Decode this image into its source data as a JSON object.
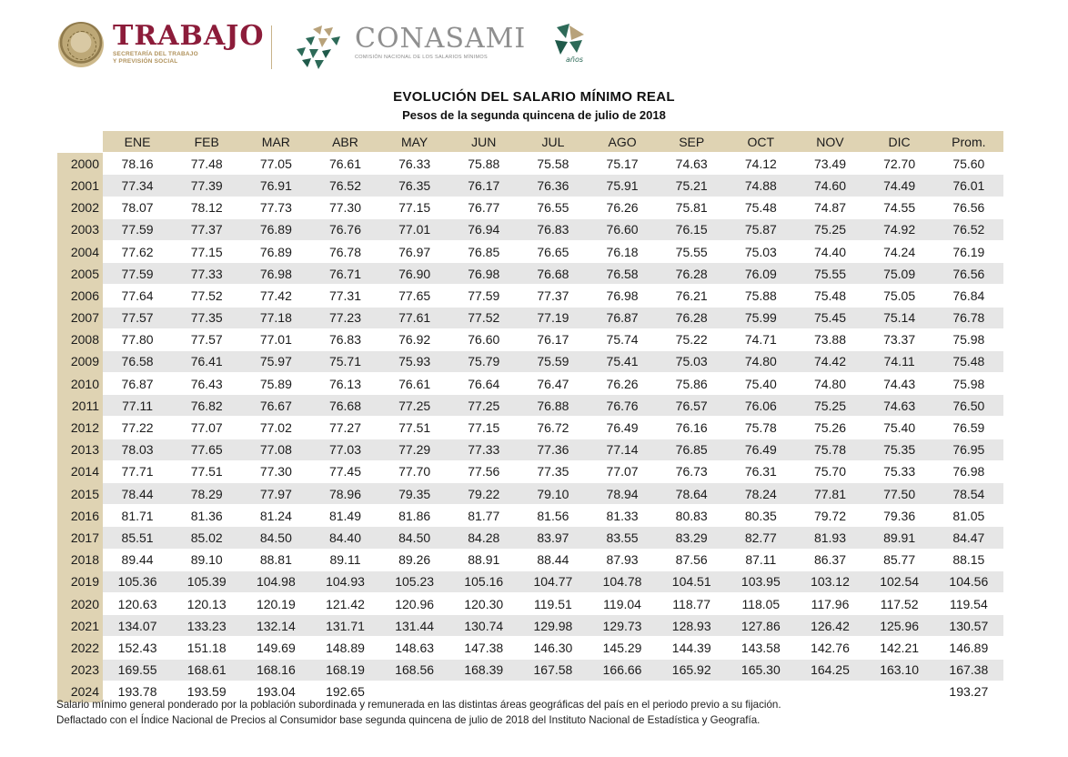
{
  "logos": {
    "trabajo_word": "TRABAJO",
    "trabajo_sub_line1": "SECRETARÍA DEL TRABAJO",
    "trabajo_sub_line2": "Y PREVISIÓN SOCIAL",
    "conasami_word": "CONASAMI",
    "conasami_sub": "COMISIÓN NACIONAL DE LOS SALARIOS MÍNIMOS",
    "anios_text": "años",
    "colors": {
      "trabajo": "#8c1c3a",
      "gold": "#b0925c",
      "conasami_gray": "#8f8f8f",
      "green": "#1f5a4a"
    }
  },
  "title": "EVOLUCIÓN DEL SALARIO MÍNIMO REAL",
  "subtitle": "Pesos de la segunda quincena de julio de 2018",
  "table": {
    "columns": [
      "ENE",
      "FEB",
      "MAR",
      "ABR",
      "MAY",
      "JUN",
      "JUL",
      "AGO",
      "SEP",
      "OCT",
      "NOV",
      "DIC",
      "Prom."
    ],
    "rows": [
      {
        "year": "2000",
        "values": [
          "78.16",
          "77.48",
          "77.05",
          "76.61",
          "76.33",
          "75.88",
          "75.58",
          "75.17",
          "74.63",
          "74.12",
          "73.49",
          "72.70",
          "75.60"
        ]
      },
      {
        "year": "2001",
        "values": [
          "77.34",
          "77.39",
          "76.91",
          "76.52",
          "76.35",
          "76.17",
          "76.36",
          "75.91",
          "75.21",
          "74.88",
          "74.60",
          "74.49",
          "76.01"
        ]
      },
      {
        "year": "2002",
        "values": [
          "78.07",
          "78.12",
          "77.73",
          "77.30",
          "77.15",
          "76.77",
          "76.55",
          "76.26",
          "75.81",
          "75.48",
          "74.87",
          "74.55",
          "76.56"
        ]
      },
      {
        "year": "2003",
        "values": [
          "77.59",
          "77.37",
          "76.89",
          "76.76",
          "77.01",
          "76.94",
          "76.83",
          "76.60",
          "76.15",
          "75.87",
          "75.25",
          "74.92",
          "76.52"
        ]
      },
      {
        "year": "2004",
        "values": [
          "77.62",
          "77.15",
          "76.89",
          "76.78",
          "76.97",
          "76.85",
          "76.65",
          "76.18",
          "75.55",
          "75.03",
          "74.40",
          "74.24",
          "76.19"
        ]
      },
      {
        "year": "2005",
        "values": [
          "77.59",
          "77.33",
          "76.98",
          "76.71",
          "76.90",
          "76.98",
          "76.68",
          "76.58",
          "76.28",
          "76.09",
          "75.55",
          "75.09",
          "76.56"
        ]
      },
      {
        "year": "2006",
        "values": [
          "77.64",
          "77.52",
          "77.42",
          "77.31",
          "77.65",
          "77.59",
          "77.37",
          "76.98",
          "76.21",
          "75.88",
          "75.48",
          "75.05",
          "76.84"
        ]
      },
      {
        "year": "2007",
        "values": [
          "77.57",
          "77.35",
          "77.18",
          "77.23",
          "77.61",
          "77.52",
          "77.19",
          "76.87",
          "76.28",
          "75.99",
          "75.45",
          "75.14",
          "76.78"
        ]
      },
      {
        "year": "2008",
        "values": [
          "77.80",
          "77.57",
          "77.01",
          "76.83",
          "76.92",
          "76.60",
          "76.17",
          "75.74",
          "75.22",
          "74.71",
          "73.88",
          "73.37",
          "75.98"
        ]
      },
      {
        "year": "2009",
        "values": [
          "76.58",
          "76.41",
          "75.97",
          "75.71",
          "75.93",
          "75.79",
          "75.59",
          "75.41",
          "75.03",
          "74.80",
          "74.42",
          "74.11",
          "75.48"
        ]
      },
      {
        "year": "2010",
        "values": [
          "76.87",
          "76.43",
          "75.89",
          "76.13",
          "76.61",
          "76.64",
          "76.47",
          "76.26",
          "75.86",
          "75.40",
          "74.80",
          "74.43",
          "75.98"
        ]
      },
      {
        "year": "2011",
        "values": [
          "77.11",
          "76.82",
          "76.67",
          "76.68",
          "77.25",
          "77.25",
          "76.88",
          "76.76",
          "76.57",
          "76.06",
          "75.25",
          "74.63",
          "76.50"
        ]
      },
      {
        "year": "2012",
        "values": [
          "77.22",
          "77.07",
          "77.02",
          "77.27",
          "77.51",
          "77.15",
          "76.72",
          "76.49",
          "76.16",
          "75.78",
          "75.26",
          "75.40",
          "76.59"
        ]
      },
      {
        "year": "2013",
        "values": [
          "78.03",
          "77.65",
          "77.08",
          "77.03",
          "77.29",
          "77.33",
          "77.36",
          "77.14",
          "76.85",
          "76.49",
          "75.78",
          "75.35",
          "76.95"
        ]
      },
      {
        "year": "2014",
        "values": [
          "77.71",
          "77.51",
          "77.30",
          "77.45",
          "77.70",
          "77.56",
          "77.35",
          "77.07",
          "76.73",
          "76.31",
          "75.70",
          "75.33",
          "76.98"
        ]
      },
      {
        "year": "2015",
        "values": [
          "78.44",
          "78.29",
          "77.97",
          "78.96",
          "79.35",
          "79.22",
          "79.10",
          "78.94",
          "78.64",
          "78.24",
          "77.81",
          "77.50",
          "78.54"
        ]
      },
      {
        "year": "2016",
        "values": [
          "81.71",
          "81.36",
          "81.24",
          "81.49",
          "81.86",
          "81.77",
          "81.56",
          "81.33",
          "80.83",
          "80.35",
          "79.72",
          "79.36",
          "81.05"
        ]
      },
      {
        "year": "2017",
        "values": [
          "85.51",
          "85.02",
          "84.50",
          "84.40",
          "84.50",
          "84.28",
          "83.97",
          "83.55",
          "83.29",
          "82.77",
          "81.93",
          "89.91",
          "84.47"
        ]
      },
      {
        "year": "2018",
        "values": [
          "89.44",
          "89.10",
          "88.81",
          "89.11",
          "89.26",
          "88.91",
          "88.44",
          "87.93",
          "87.56",
          "87.11",
          "86.37",
          "85.77",
          "88.15"
        ]
      },
      {
        "year": "2019",
        "values": [
          "105.36",
          "105.39",
          "104.98",
          "104.93",
          "105.23",
          "105.16",
          "104.77",
          "104.78",
          "104.51",
          "103.95",
          "103.12",
          "102.54",
          "104.56"
        ]
      },
      {
        "year": "2020",
        "values": [
          "120.63",
          "120.13",
          "120.19",
          "121.42",
          "120.96",
          "120.30",
          "119.51",
          "119.04",
          "118.77",
          "118.05",
          "117.96",
          "117.52",
          "119.54"
        ]
      },
      {
        "year": "2021",
        "values": [
          "134.07",
          "133.23",
          "132.14",
          "131.71",
          "131.44",
          "130.74",
          "129.98",
          "129.73",
          "128.93",
          "127.86",
          "126.42",
          "125.96",
          "130.57"
        ]
      },
      {
        "year": "2022",
        "values": [
          "152.43",
          "151.18",
          "149.69",
          "148.89",
          "148.63",
          "147.38",
          "146.30",
          "145.29",
          "144.39",
          "143.58",
          "142.76",
          "142.21",
          "146.89"
        ]
      },
      {
        "year": "2023",
        "values": [
          "169.55",
          "168.61",
          "168.16",
          "168.19",
          "168.56",
          "168.39",
          "167.58",
          "166.66",
          "165.92",
          "165.30",
          "164.25",
          "163.10",
          "167.38"
        ]
      },
      {
        "year": "2024",
        "values": [
          "193.78",
          "193.59",
          "193.04",
          "192.65",
          "",
          "",
          "",
          "",
          "",
          "",
          "",
          "",
          "193.27"
        ]
      }
    ]
  },
  "notes": [
    "Salario mínimo general ponderado por la población subordinada y remunerada en las distintas áreas geográficas del país en el periodo previo a su fijación.",
    "Deflactado con el Índice Nacional de Precios al Consumidor base segunda quincena de julio de 2018 del Instituto Nacional de Estadística y Geografía."
  ]
}
